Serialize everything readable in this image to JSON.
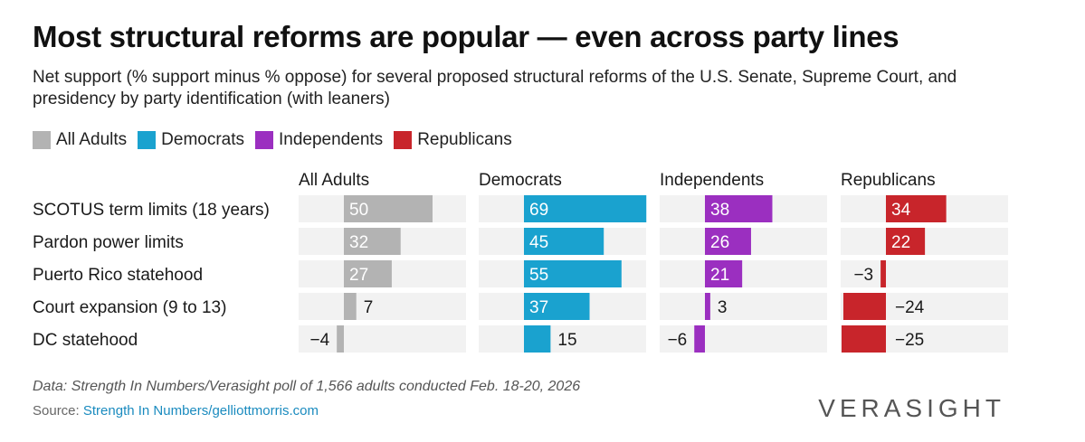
{
  "title": "Most structural reforms are popular — even across party lines",
  "subtitle": "Net support (% support minus % oppose) for several proposed structural reforms of the U.S. Senate, Supreme Court, and presidency by party identification (with leaners)",
  "legend": [
    {
      "label": "All Adults",
      "color": "#b3b3b3"
    },
    {
      "label": "Democrats",
      "color": "#1aa2cf"
    },
    {
      "label": "Independents",
      "color": "#9b2fc0"
    },
    {
      "label": "Republicans",
      "color": "#c8252b"
    }
  ],
  "chart_data": {
    "type": "bar",
    "orientation": "horizontal",
    "categories": [
      "SCOTUS term limits (18 years)",
      "Pardon power limits",
      "Puerto Rico statehood",
      "Court expansion (9 to 13)",
      "DC statehood"
    ],
    "series": [
      {
        "name": "All Adults",
        "color": "#b3b3b3",
        "values": [
          50,
          32,
          27,
          7,
          -4
        ],
        "labels": [
          "50",
          "32",
          "27",
          "7",
          "−4"
        ]
      },
      {
        "name": "Democrats",
        "color": "#1aa2cf",
        "values": [
          69,
          45,
          55,
          37,
          15
        ],
        "labels": [
          "69",
          "45",
          "55",
          "37",
          "15"
        ]
      },
      {
        "name": "Independents",
        "color": "#9b2fc0",
        "values": [
          38,
          26,
          21,
          3,
          -6
        ],
        "labels": [
          "38",
          "26",
          "21",
          "3",
          "−6"
        ]
      },
      {
        "name": "Republicans",
        "color": "#c8252b",
        "values": [
          34,
          22,
          -3,
          -24,
          -25
        ],
        "labels": [
          "34",
          "22",
          "−3",
          "−24",
          "−25"
        ]
      }
    ],
    "xlim": [
      -25,
      69
    ],
    "legend_position": "top-left"
  },
  "footer": {
    "note": "Data: Strength In Numbers/Verasight poll of 1,566 adults conducted Feb. 18-20, 2026",
    "source_prefix": "Source: ",
    "source_link": "Strength In Numbers/gelliottmorris.com"
  },
  "brand": "VERASIGHT"
}
